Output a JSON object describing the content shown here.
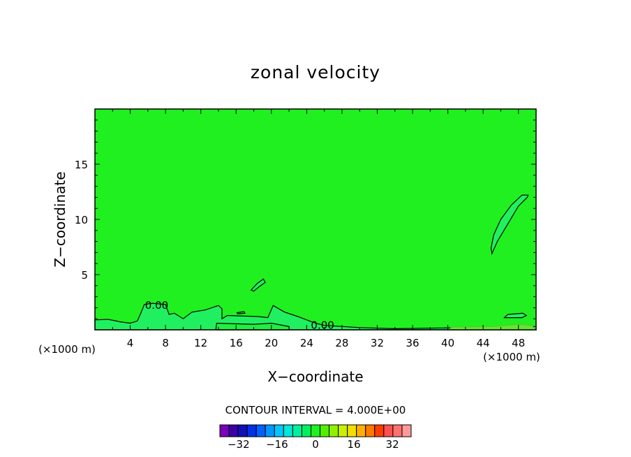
{
  "chart_data": {
    "type": "contour",
    "title": "zonal velocity",
    "xlabel": "X−coordinate",
    "ylabel": "Z−coordinate",
    "x_unit_left": "(×1000 m)",
    "x_unit_right": "(×1000 m)",
    "xlim": [
      0,
      50
    ],
    "ylim": [
      0,
      20
    ],
    "x_ticks": [
      4,
      8,
      12,
      16,
      20,
      24,
      28,
      32,
      36,
      40,
      44,
      48
    ],
    "y_ticks": [
      5,
      10,
      15
    ],
    "background_level": 0,
    "contour_labels": [
      {
        "text": "0.00",
        "x": 7.0,
        "y": 2.2
      },
      {
        "text": "0.00",
        "x": 25.8,
        "y": 0.4
      }
    ],
    "contour_interval_text": "CONTOUR INTERVAL = 4.000E+00",
    "colorbar": {
      "levels": [
        -36,
        -32,
        -28,
        -24,
        -20,
        -16,
        -12,
        -8,
        -4,
        0,
        4,
        8,
        12,
        16,
        20,
        24,
        28,
        32,
        36
      ],
      "colors": [
        "#7a00b8",
        "#3a00a8",
        "#1010b8",
        "#0030e8",
        "#0060ff",
        "#0098ff",
        "#00c8ff",
        "#00e8d8",
        "#00f0a0",
        "#00f060",
        "#20f020",
        "#50f000",
        "#90f000",
        "#c8f000",
        "#f0e000",
        "#ffb000",
        "#ff7800",
        "#ff3c00",
        "#ff5050",
        "#ff7070",
        "#ff9a9a"
      ],
      "tick_labels": [
        "−32",
        "−16",
        "0",
        "16",
        "32"
      ],
      "tick_values": [
        -32,
        -16,
        0,
        16,
        32
      ]
    },
    "fill_colors": {
      "main": "#20f020",
      "weak_positive": "#20ee40",
      "weak_negative": "#20f060",
      "surface": "#60e830"
    }
  }
}
